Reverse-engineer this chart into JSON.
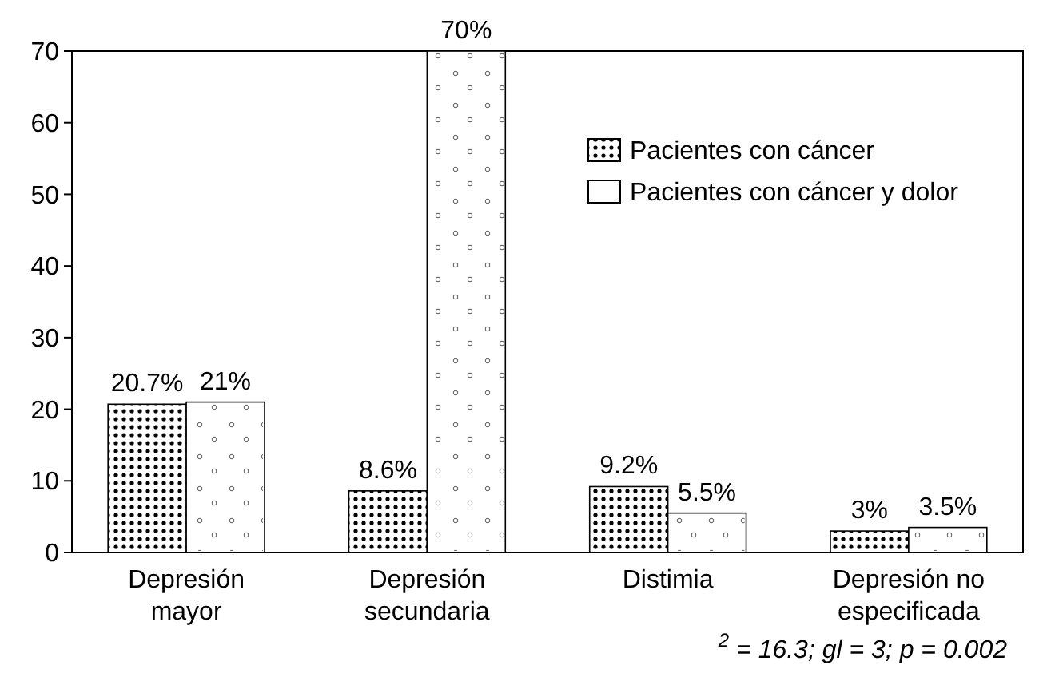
{
  "chart_data": {
    "type": "bar",
    "categories": [
      "Depresión mayor",
      "Depresión secundaria",
      "Distimia",
      "Depresión no especificada"
    ],
    "series": [
      {
        "name": "Pacientes con cáncer",
        "color": "#000000",
        "values": [
          20.7,
          8.6,
          9.2,
          3
        ],
        "value_labels": [
          "20.7%",
          "8.6%",
          "9.2%",
          "3%"
        ]
      },
      {
        "name": "Pacientes con cáncer y dolor",
        "color": "#ffffff",
        "values": [
          21,
          70,
          5.5,
          3.5
        ],
        "value_labels": [
          "21%",
          "70%",
          "5.5%",
          "3.5%"
        ]
      }
    ],
    "ylim": [
      0,
      70
    ],
    "yticks": [
      0,
      10,
      20,
      30,
      40,
      50,
      60,
      70
    ],
    "grid": false,
    "legend": "top right",
    "annotations": [
      "$^{2}$ = 16.3;  gl = 3; p = 0.002"
    ]
  }
}
